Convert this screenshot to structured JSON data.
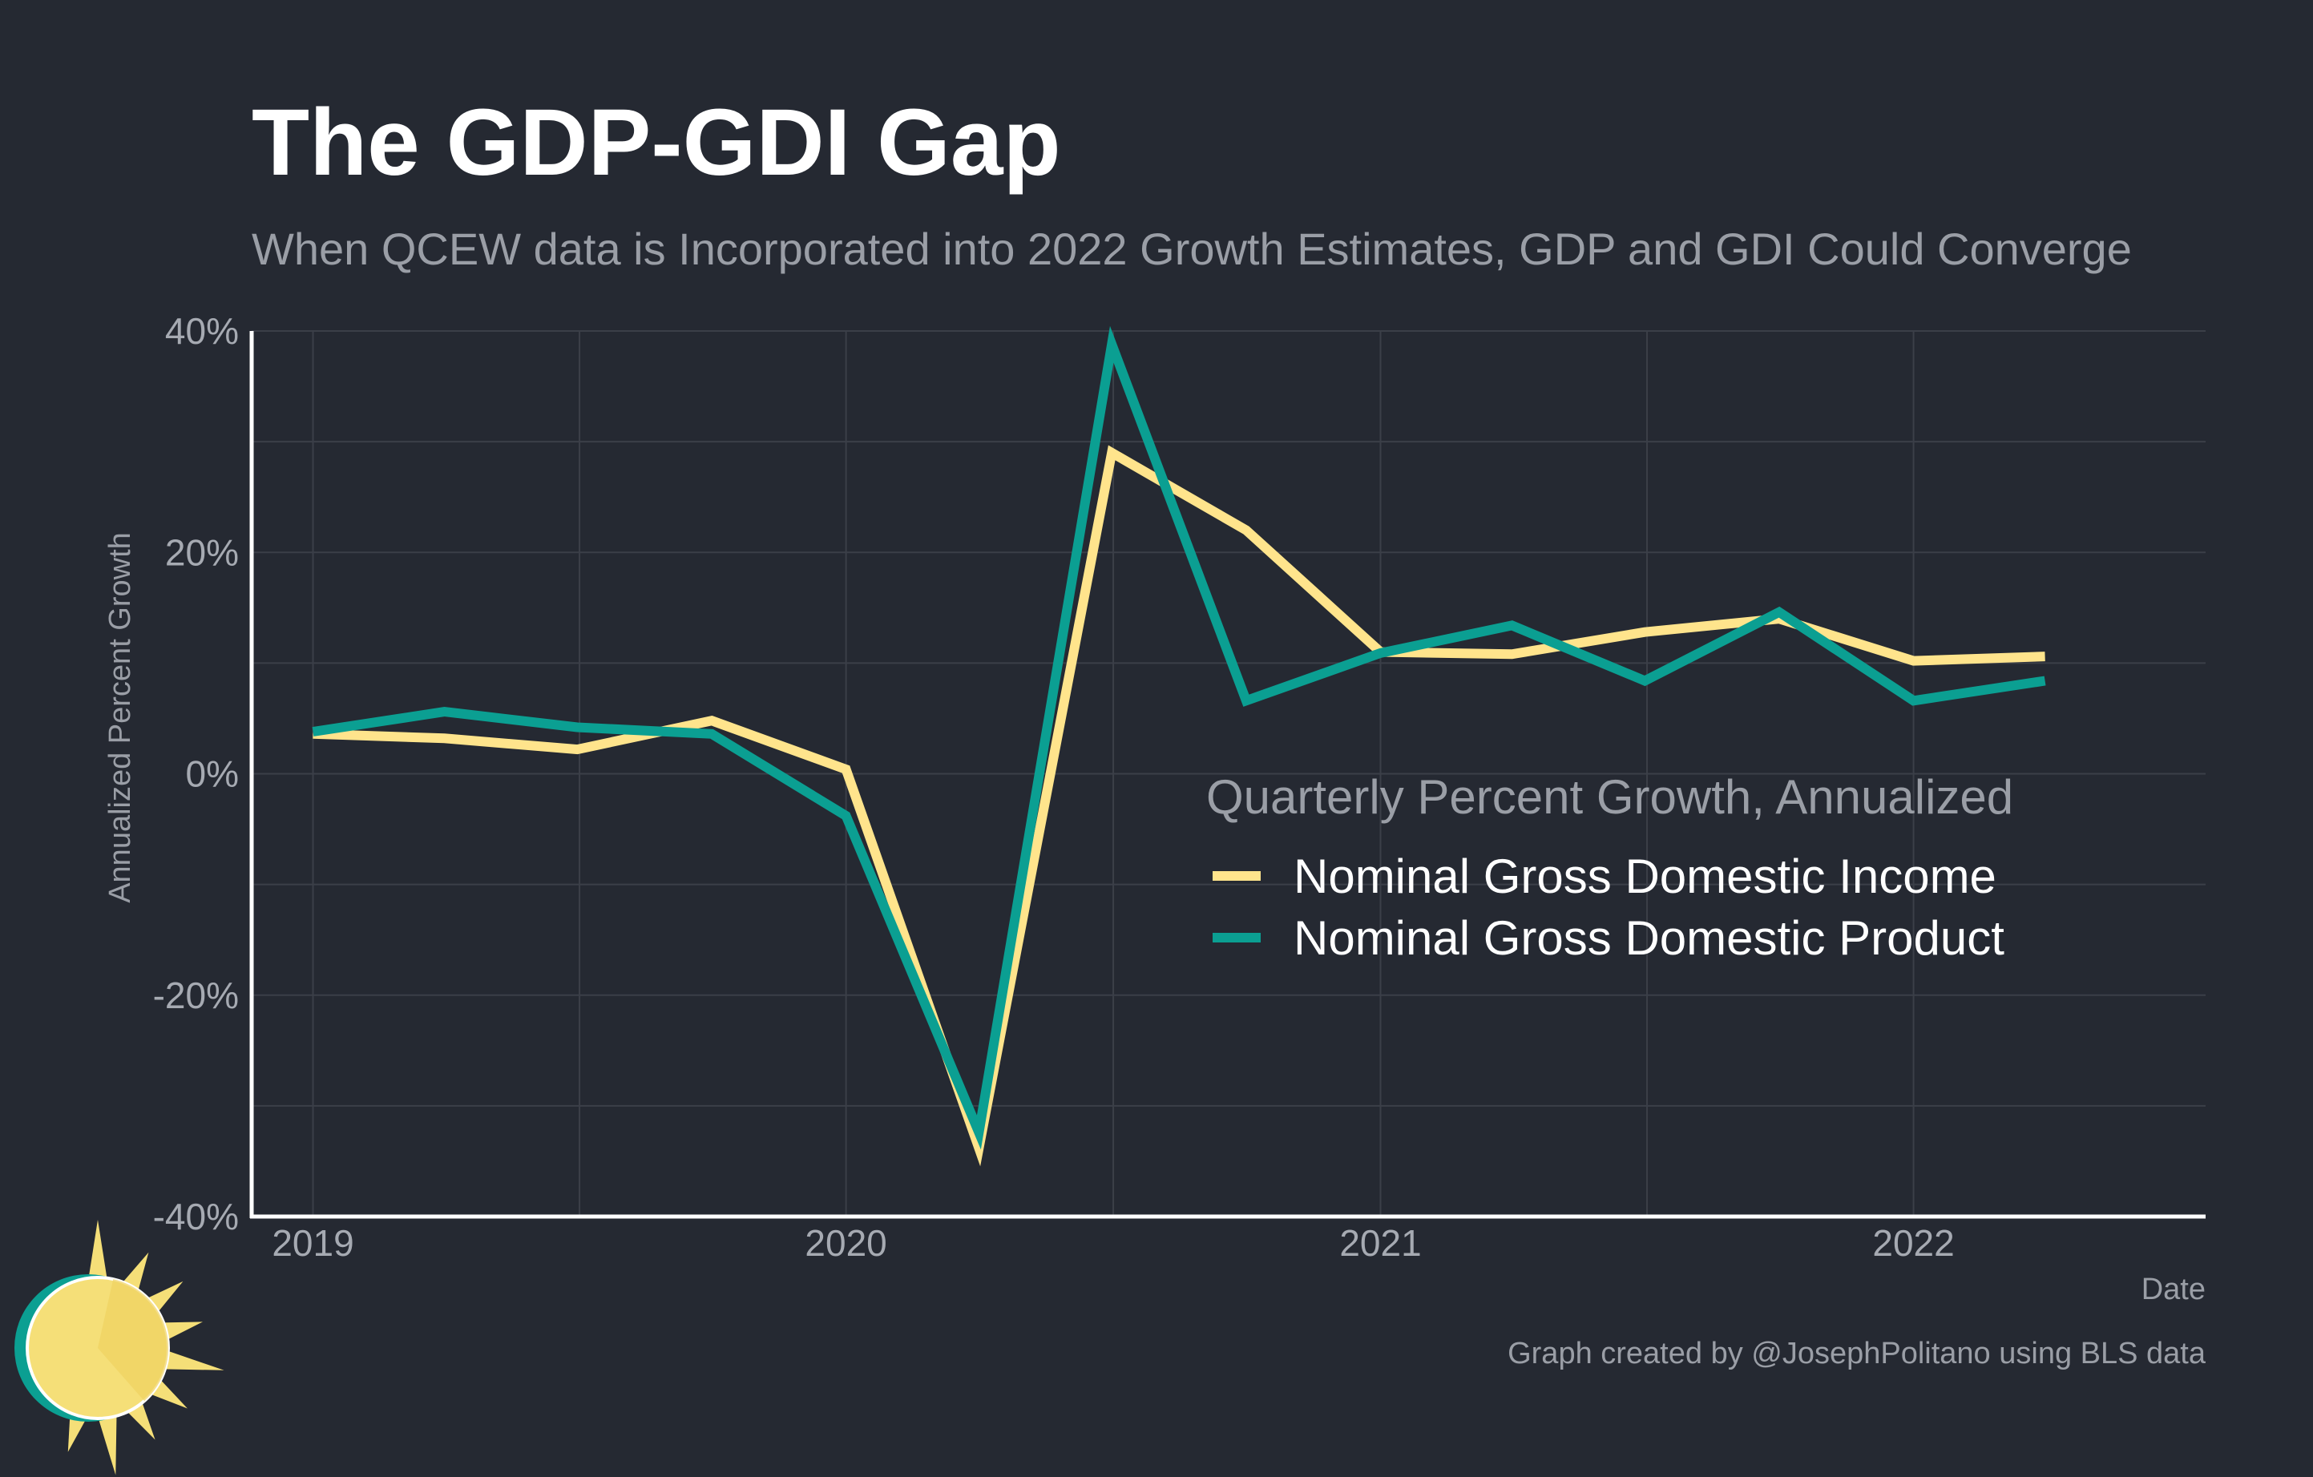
{
  "colors": {
    "background": "#252932",
    "grid": "#3b3f48",
    "axis": "#ffffff",
    "gdi": "#ffe48c",
    "gdp": "#0b9f92",
    "logo_sun": "#f5df78",
    "logo_ring": "#0b9f92"
  },
  "logo": {
    "icon": "sun-logo-icon"
  },
  "chart_data": {
    "type": "line",
    "title": "The GDP-GDI Gap",
    "subtitle": "When QCEW data is Incorporated into 2022 Growth Estimates, GDP and GDI Could Converge",
    "xlabel": "Date",
    "ylabel": "Annualized Percent Growth",
    "xlim": [
      "2018-11-20",
      "2022-07-20"
    ],
    "ylim": [
      -40,
      40
    ],
    "x_ticks": [
      "2019",
      "2020",
      "2021",
      "2022"
    ],
    "x_tick_dates": [
      "2019-01-01",
      "2020-01-01",
      "2021-01-01",
      "2022-01-01"
    ],
    "y_ticks": [
      -40,
      -20,
      0,
      20,
      40
    ],
    "y_tick_labels": [
      "-40%",
      "-20%",
      "0%",
      "20%",
      "40%"
    ],
    "grid": true,
    "legend": {
      "title": "Quarterly Percent Growth, Annualized",
      "position": "inside-right"
    },
    "x": [
      "2019-01-01",
      "2019-04-01",
      "2019-07-01",
      "2019-10-01",
      "2020-01-01",
      "2020-04-01",
      "2020-07-01",
      "2020-10-01",
      "2021-01-01",
      "2021-04-01",
      "2021-07-01",
      "2021-10-01",
      "2022-01-01",
      "2022-04-01"
    ],
    "series": [
      {
        "name": "Nominal Gross Domestic Income",
        "color": "#ffe48c",
        "values": [
          3.6,
          3.2,
          2.2,
          4.8,
          0.4,
          -33.8,
          29.0,
          22.0,
          11.0,
          10.8,
          12.8,
          14.0,
          10.2,
          10.6
        ]
      },
      {
        "name": "Nominal Gross Domestic Product",
        "color": "#0b9f92",
        "values": [
          3.8,
          5.6,
          4.2,
          3.6,
          -3.8,
          -32.4,
          38.8,
          6.6,
          10.9,
          13.4,
          8.4,
          14.6,
          6.6,
          8.4
        ]
      }
    ],
    "caption": "Graph created by @JosephPolitano using BLS data"
  }
}
